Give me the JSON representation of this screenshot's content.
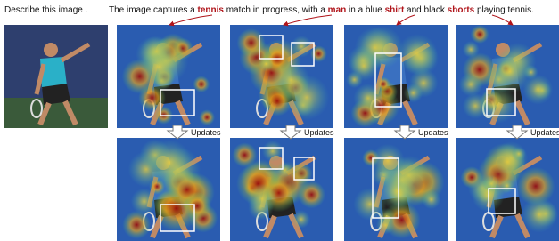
{
  "prompt": "Describe this image .",
  "caption": {
    "segments": [
      {
        "text": "The image captures a ",
        "highlight": false
      },
      {
        "text": "tennis",
        "highlight": true
      },
      {
        "text": " match in progress, with a ",
        "highlight": false
      },
      {
        "text": "man",
        "highlight": true
      },
      {
        "text": " in a blue ",
        "highlight": false
      },
      {
        "text": "shirt",
        "highlight": true
      },
      {
        "text": " and black ",
        "highlight": false
      },
      {
        "text": "shorts",
        "highlight": true
      },
      {
        "text": " playing tennis.",
        "highlight": false
      }
    ]
  },
  "update_labels": [
    "Updates",
    "Updates",
    "Updates",
    "Updates"
  ]
}
